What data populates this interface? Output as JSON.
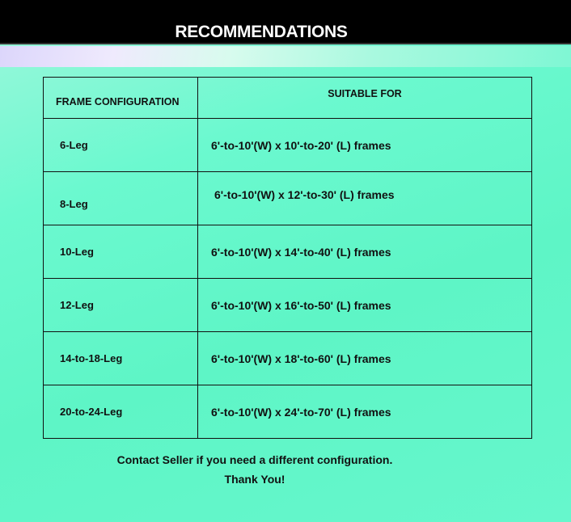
{
  "title": "RECOMMENDATIONS",
  "table": {
    "headers": [
      "FRAME CONFIGURATION",
      "SUITABLE FOR"
    ],
    "rows": [
      [
        "6-Leg",
        "6'-to-10'(W) x 10'-to-20' (L) frames"
      ],
      [
        "8-Leg",
        "6'-to-10'(W) x 12'-to-30' (L) frames"
      ],
      [
        "10-Leg",
        "6'-to-10'(W) x 14'-to-40' (L) frames"
      ],
      [
        "12-Leg",
        "6'-to-10'(W) x 16'-to-50' (L) frames"
      ],
      [
        "14-to-18-Leg",
        "6'-to-10'(W) x 18'-to-60' (L) frames"
      ],
      [
        "20-to-24-Leg",
        "6'-to-10'(W) x 24'-to-70' (L) frames"
      ]
    ]
  },
  "footer": {
    "contact": "Contact Seller if you need a different configuration.",
    "thanks": "Thank You!"
  }
}
